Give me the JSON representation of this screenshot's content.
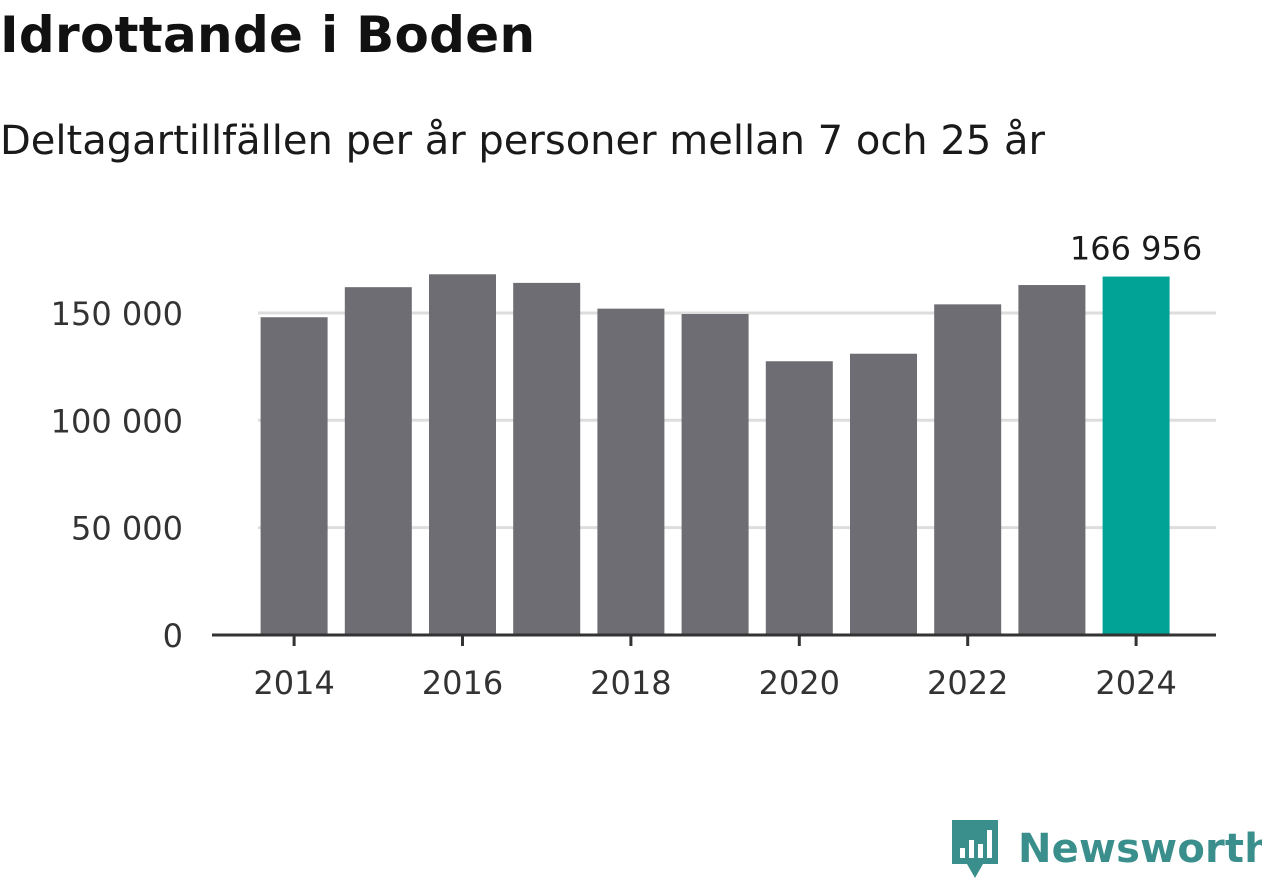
{
  "header": {
    "title": "Idrottande i Boden",
    "subtitle": "Deltagartillfällen per år personer mellan 7 och 25 år"
  },
  "brand": {
    "name": "Newsworthy",
    "icon": "newsworthy-logo-icon",
    "color": "#3a8f8c"
  },
  "colors": {
    "bar": "#6e6d73",
    "highlight": "#00a396",
    "grid": "#dddddd",
    "axis": "#333333"
  },
  "chart_data": {
    "type": "bar",
    "title": "Idrottande i Boden",
    "subtitle": "Deltagartillfällen per år personer mellan 7 och 25 år",
    "xlabel": "",
    "ylabel": "",
    "categories": [
      "2014",
      "2015",
      "2016",
      "2017",
      "2018",
      "2019",
      "2020",
      "2021",
      "2022",
      "2023",
      "2024"
    ],
    "values": [
      148000,
      162000,
      168000,
      164000,
      152000,
      149500,
      127500,
      131000,
      154000,
      163000,
      166956
    ],
    "highlight_index": 10,
    "data_labels": [
      {
        "index": 10,
        "text": "166 956"
      }
    ],
    "ylim": [
      0,
      175000
    ],
    "yticks": [
      {
        "value": 0,
        "label": "0"
      },
      {
        "value": 50000,
        "label": "50 000"
      },
      {
        "value": 100000,
        "label": "100 000"
      },
      {
        "value": 150000,
        "label": "150 000"
      }
    ],
    "xticks": [
      {
        "value": "2014",
        "label": "2014"
      },
      {
        "value": "2016",
        "label": "2016"
      },
      {
        "value": "2018",
        "label": "2018"
      },
      {
        "value": "2020",
        "label": "2020"
      },
      {
        "value": "2022",
        "label": "2022"
      },
      {
        "value": "2024",
        "label": "2024"
      }
    ],
    "grid": true,
    "legend": "none"
  }
}
